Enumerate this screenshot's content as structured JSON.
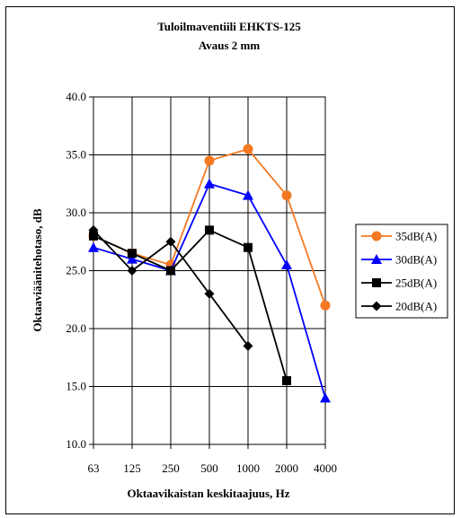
{
  "chart_data": {
    "type": "line",
    "title": "Tuloilmaventiili EHKTS-125",
    "subtitle": "Avaus 2 mm",
    "xlabel": "Oktaavikaistan keskitaajuus, Hz",
    "ylabel": "Oktaaviäänitehotaso, dB",
    "categories": [
      "63",
      "125",
      "250",
      "500",
      "1000",
      "2000",
      "4000"
    ],
    "ylim": [
      10.0,
      40.0
    ],
    "yticks": [
      "10.0",
      "15.0",
      "20.0",
      "25.0",
      "30.0",
      "35.0",
      "40.0"
    ],
    "grid": true,
    "legend_position": "right",
    "series": [
      {
        "name": "35dB(A)",
        "color": "#f47920",
        "marker": "circle",
        "values": [
          28.0,
          26.5,
          25.5,
          34.5,
          35.5,
          31.5,
          22.0
        ]
      },
      {
        "name": "30dB(A)",
        "color": "#0000ff",
        "marker": "triangle",
        "values": [
          27.0,
          26.0,
          25.0,
          32.5,
          31.5,
          25.5,
          14.0
        ]
      },
      {
        "name": "25dB(A)",
        "color": "#000000",
        "marker": "square",
        "values": [
          28.0,
          26.5,
          25.0,
          28.5,
          27.0,
          15.5,
          null
        ]
      },
      {
        "name": "20dB(A)",
        "color": "#000000",
        "marker": "diamond",
        "values": [
          28.5,
          25.0,
          27.5,
          23.0,
          18.5,
          null,
          null
        ]
      }
    ]
  }
}
